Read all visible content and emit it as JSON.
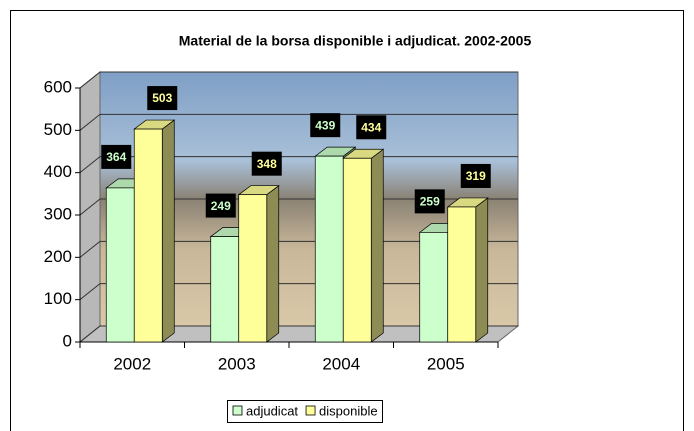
{
  "chart_data": {
    "type": "bar3d",
    "title": "Material de la borsa disponible i adjudicat. 2002-2005",
    "categories": [
      "2002",
      "2003",
      "2004",
      "2005"
    ],
    "series": [
      {
        "name": "adjudicat",
        "color": "#ccffcc",
        "values": [
          364,
          249,
          439,
          259
        ]
      },
      {
        "name": "disponible",
        "color": "#ffff99",
        "values": [
          503,
          348,
          434,
          319
        ]
      }
    ],
    "ylim": [
      0,
      600
    ],
    "yticks": [
      0,
      100,
      200,
      300,
      400,
      500,
      600
    ],
    "grid": true,
    "legend": "bottom"
  }
}
